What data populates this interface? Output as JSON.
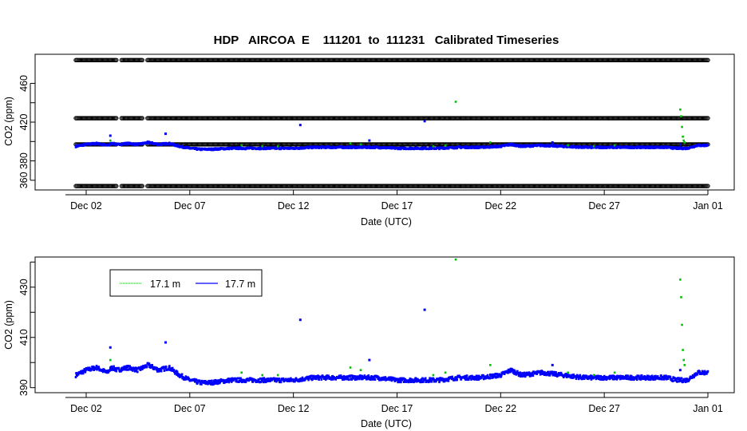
{
  "chart_data": [
    {
      "type": "scatter",
      "title": "HDP   AIRCOA  E    111201  to  111231   Calibrated Timeseries",
      "xlabel": "Date (UTC)",
      "ylabel": "CO2 (ppm)",
      "x_range": [
        "2011-12-01",
        "2012-01-01"
      ],
      "ylim": [
        350,
        490
      ],
      "yticks": [
        360,
        380,
        400,
        420,
        440,
        460
      ],
      "ytick_labels": [
        "360",
        "380",
        "",
        "420",
        "",
        "460"
      ],
      "xticks": [
        "Dec 02",
        "Dec 07",
        "Dec 12",
        "Dec 17",
        "Dec 22",
        "Dec 27",
        "Jan 01"
      ],
      "grid": false,
      "calibration_levels": [
        354,
        397,
        424,
        484
      ],
      "calibration_gaps": [
        [
          "2011-12-03 12:00",
          "2011-12-03 16:00"
        ],
        [
          "2011-12-04 18:00",
          "2011-12-04 22:00"
        ]
      ],
      "colors": {
        "calibration": "#000000",
        "series_17_1": "#00c000",
        "series_17_7": "#0000ff"
      },
      "baseline_17_7": {
        "x": [
          "2011-12-01 12:00",
          "2011-12-02 00:00",
          "2011-12-02 12:00",
          "2011-12-03 00:00",
          "2011-12-03 06:00",
          "2011-12-03 12:00",
          "2011-12-04 00:00",
          "2011-12-04 12:00",
          "2011-12-05 00:00",
          "2011-12-05 12:00",
          "2011-12-06 00:00",
          "2011-12-06 12:00",
          "2011-12-07 00:00",
          "2011-12-07 12:00",
          "2011-12-08 00:00",
          "2011-12-09 00:00",
          "2011-12-10 00:00",
          "2011-12-11 00:00",
          "2011-12-12 00:00",
          "2011-12-13 00:00",
          "2011-12-14 00:00",
          "2011-12-15 00:00",
          "2011-12-16 00:00",
          "2011-12-17 00:00",
          "2011-12-18 00:00",
          "2011-12-19 00:00",
          "2011-12-20 00:00",
          "2011-12-21 00:00",
          "2011-12-22 00:00",
          "2011-12-22 12:00",
          "2011-12-23 00:00",
          "2011-12-24 00:00",
          "2011-12-25 00:00",
          "2011-12-26 00:00",
          "2011-12-27 00:00",
          "2011-12-28 00:00",
          "2011-12-29 00:00",
          "2011-12-30 00:00",
          "2011-12-30 12:00",
          "2011-12-31 00:00",
          "2011-12-31 12:00",
          "2012-01-01 00:00"
        ],
        "y": [
          395,
          397,
          398,
          396,
          398,
          397,
          398,
          397,
          399,
          397,
          398,
          395,
          393,
          392,
          392,
          393,
          393,
          393,
          393,
          394,
          394,
          394,
          394,
          393,
          393,
          393,
          394,
          394,
          395,
          397,
          395,
          396,
          395,
          394,
          394,
          394,
          394,
          394,
          393,
          393,
          396,
          396
        ]
      },
      "spikes_17_7": {
        "x": [
          "2011-12-03 04:00",
          "2011-12-05 20:00",
          "2011-12-12 08:00",
          "2011-12-15 16:00",
          "2011-12-18 08:00",
          "2011-12-24 12:00",
          "2011-12-30 16:00"
        ],
        "y": [
          406,
          408,
          417,
          401,
          421,
          399,
          397
        ]
      },
      "points_17_1": {
        "x": [
          "2011-12-03 04:00",
          "2011-12-09 12:00",
          "2011-12-10 12:00",
          "2011-12-11 06:00",
          "2011-12-14 18:00",
          "2011-12-15 06:00",
          "2011-12-18 18:00",
          "2011-12-19 08:00",
          "2011-12-19 20:00",
          "2011-12-21 12:00",
          "2011-12-25 06:00",
          "2011-12-26 12:00",
          "2011-12-27 12:00",
          "2011-12-30 16:00",
          "2011-12-30 17:00",
          "2011-12-30 18:00",
          "2011-12-30 19:00",
          "2011-12-30 20:00",
          "2011-12-30 21:00"
        ],
        "y": [
          401,
          396,
          395,
          395,
          398,
          397,
          395,
          396,
          441,
          399,
          396,
          395,
          396,
          433,
          426,
          415,
          405,
          401,
          399
        ]
      }
    },
    {
      "type": "scatter",
      "title": "",
      "xlabel": "Date (UTC)",
      "ylabel": "CO2 (ppm)",
      "x_range": [
        "2011-12-01",
        "2012-01-01"
      ],
      "ylim": [
        388,
        442
      ],
      "yticks": [
        390,
        400,
        410,
        420,
        430,
        440
      ],
      "ytick_labels": [
        "390",
        "",
        "410",
        "",
        "430",
        ""
      ],
      "xticks": [
        "Dec 02",
        "Dec 07",
        "Dec 12",
        "Dec 17",
        "Dec 22",
        "Dec 27",
        "Jan 01"
      ],
      "grid": false,
      "legend": {
        "position": "top-left",
        "entries": [
          {
            "label": "17.1 m",
            "color": "#00c000"
          },
          {
            "label": "17.7 m",
            "color": "#0000ff"
          }
        ]
      },
      "series": [
        {
          "name": "17.1 m"
        },
        {
          "name": "17.7 m"
        }
      ]
    }
  ]
}
